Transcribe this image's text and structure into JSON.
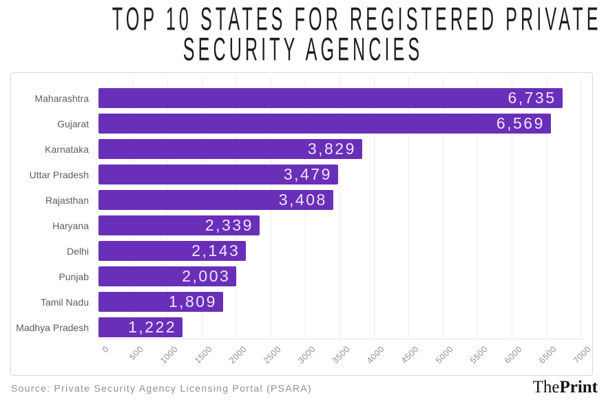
{
  "header": {
    "title_line1": "TOP 10 STATES FOR REGISTERED PRIVATE",
    "title_line2": "SECURITY AGENCIES"
  },
  "footer": {
    "source": "Source: Private Security Agency Licensing Portal (PSARA)",
    "logo_the": "The",
    "logo_print": "Print"
  },
  "colors": {
    "bar": "#6a2fb8",
    "value_text": "#ece6f8",
    "title": "#1f1f1f",
    "category_label": "#5e5e5e",
    "tick_label": "#8f8f8f",
    "gridline": "#ececec",
    "panel_border": "#d8d8d8",
    "source_text": "#8f8f8f",
    "logo": "#151515"
  },
  "chart_data": {
    "type": "bar",
    "orientation": "horizontal",
    "title": "Top 10 States for Registered Private Security Agencies",
    "categories": [
      "Maharashtra",
      "Gujarat",
      "Karnataka",
      "Uttar Pradesh",
      "Rajasthan",
      "Haryana",
      "Delhi",
      "Punjab",
      "Tamil Nadu",
      "Madhya Pradesh"
    ],
    "values": [
      6735,
      6569,
      3829,
      3479,
      3408,
      2339,
      2143,
      2003,
      1809,
      1222
    ],
    "value_labels": [
      "6,735",
      "6,569",
      "3,829",
      "3,479",
      "3,408",
      "2,339",
      "2,143",
      "2,003",
      "1,809",
      "1,222"
    ],
    "xlabel": "",
    "ylabel": "",
    "xlim": [
      0,
      7000
    ],
    "x_ticks": [
      0,
      500,
      1000,
      1500,
      2000,
      2500,
      3000,
      3500,
      4000,
      4500,
      5000,
      5500,
      6000,
      6500,
      7000
    ],
    "grid": true,
    "legend": false,
    "sort": "descending"
  }
}
